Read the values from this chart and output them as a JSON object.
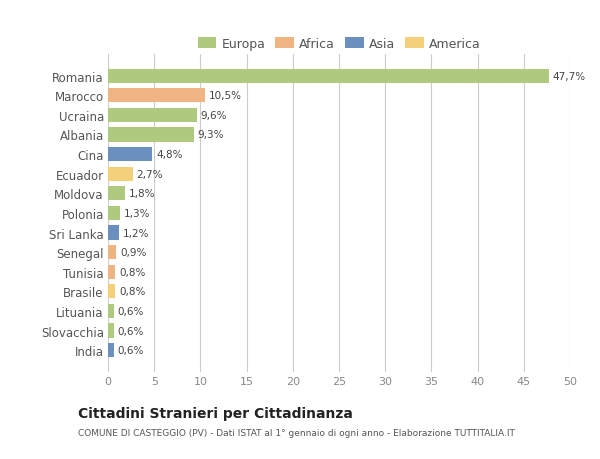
{
  "countries": [
    "Romania",
    "Marocco",
    "Ucraina",
    "Albania",
    "Cina",
    "Ecuador",
    "Moldova",
    "Polonia",
    "Sri Lanka",
    "Senegal",
    "Tunisia",
    "Brasile",
    "Lituania",
    "Slovacchia",
    "India"
  ],
  "values": [
    47.7,
    10.5,
    9.6,
    9.3,
    4.8,
    2.7,
    1.8,
    1.3,
    1.2,
    0.9,
    0.8,
    0.8,
    0.6,
    0.6,
    0.6
  ],
  "labels": [
    "47,7%",
    "10,5%",
    "9,6%",
    "9,3%",
    "4,8%",
    "2,7%",
    "1,8%",
    "1,3%",
    "1,2%",
    "0,9%",
    "0,8%",
    "0,8%",
    "0,6%",
    "0,6%",
    "0,6%"
  ],
  "colors": [
    "#afc97e",
    "#f0b482",
    "#afc97e",
    "#afc97e",
    "#6b8fbf",
    "#f5d07a",
    "#afc97e",
    "#afc97e",
    "#6b8fbf",
    "#f0b482",
    "#f0b482",
    "#f5d07a",
    "#afc97e",
    "#afc97e",
    "#6b8fbf"
  ],
  "legend_labels": [
    "Europa",
    "Africa",
    "Asia",
    "America"
  ],
  "legend_colors": [
    "#afc97e",
    "#f0b482",
    "#6b8fbf",
    "#f5d07a"
  ],
  "title": "Cittadini Stranieri per Cittadinanza",
  "subtitle": "COMUNE DI CASTEGGIO (PV) - Dati ISTAT al 1° gennaio di ogni anno - Elaborazione TUTTITALIA.IT",
  "xlim": [
    0,
    50
  ],
  "xticks": [
    0,
    5,
    10,
    15,
    20,
    25,
    30,
    35,
    40,
    45,
    50
  ],
  "background_color": "#ffffff",
  "grid_color": "#cccccc"
}
